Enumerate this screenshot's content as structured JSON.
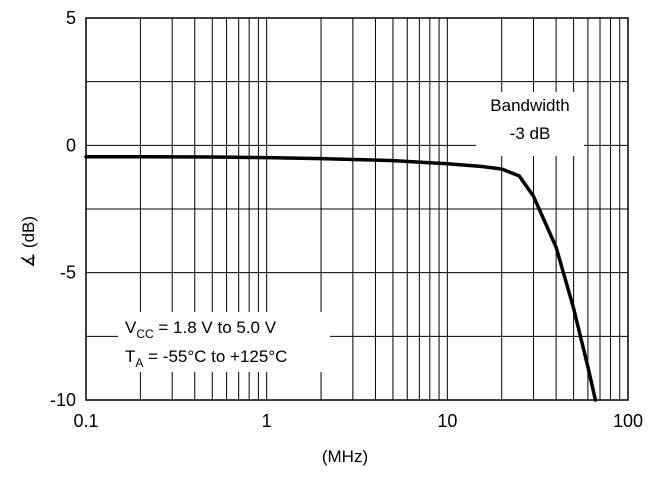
{
  "chart_data": {
    "type": "line",
    "xlabel": "(MHz)",
    "ylabel": "∡ (dB)",
    "xscale": "log",
    "xlim": [
      0.1,
      100
    ],
    "ylim": [
      -10,
      5
    ],
    "grid": true,
    "x_ticks": [
      "0.1",
      "1",
      "10",
      "100"
    ],
    "y_ticks": [
      "5",
      "0",
      "-5",
      "-10"
    ],
    "series": [
      {
        "x": [
          0.1,
          0.2,
          0.5,
          1,
          2,
          5,
          10,
          15,
          20,
          25,
          30,
          40,
          50,
          60,
          66
        ],
        "y": [
          -0.45,
          -0.45,
          -0.46,
          -0.48,
          -0.52,
          -0.6,
          -0.72,
          -0.82,
          -0.93,
          -1.2,
          -2.0,
          -4.0,
          -6.4,
          -8.7,
          -10
        ]
      }
    ],
    "annotations": {
      "bandwidth_line1": "Bandwidth",
      "bandwidth_line2": "-3  dB",
      "vcc_prefix": "V",
      "vcc_sub": "CC",
      "vcc_rest": " = 1.8 V to 5.0 V",
      "ta_prefix": "T",
      "ta_sub": "A",
      "ta_rest": " = -55°C to +125°C"
    }
  }
}
